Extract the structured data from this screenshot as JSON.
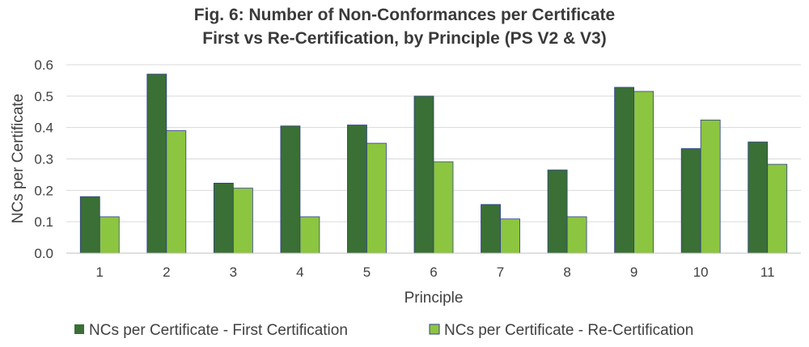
{
  "chart_data": {
    "type": "bar",
    "title": "Fig. 6: Number of Non-Conformances per Certificate",
    "subtitle": "First vs Re-Certification, by Principle (PS V2 & V3)",
    "xlabel": "Principle",
    "ylabel": "NCs per Certificate",
    "ylim": [
      0,
      0.6
    ],
    "yticks": [
      "0.0",
      "0.1",
      "0.2",
      "0.3",
      "0.4",
      "0.5",
      "0.6"
    ],
    "grid": true,
    "legend": "bottom",
    "categories": [
      "1",
      "2",
      "3",
      "4",
      "5",
      "6",
      "7",
      "8",
      "9",
      "10",
      "11"
    ],
    "series": [
      {
        "name": "NCs per Certificate - First Certification",
        "color": "#3a6f35",
        "values": [
          0.18,
          0.57,
          0.223,
          0.405,
          0.408,
          0.5,
          0.155,
          0.265,
          0.528,
          0.333,
          0.354
        ]
      },
      {
        "name": "NCs per Certificate - Re-Certification",
        "color": "#8cc53f",
        "values": [
          0.116,
          0.39,
          0.207,
          0.116,
          0.35,
          0.291,
          0.109,
          0.116,
          0.515,
          0.424,
          0.283
        ]
      }
    ]
  }
}
